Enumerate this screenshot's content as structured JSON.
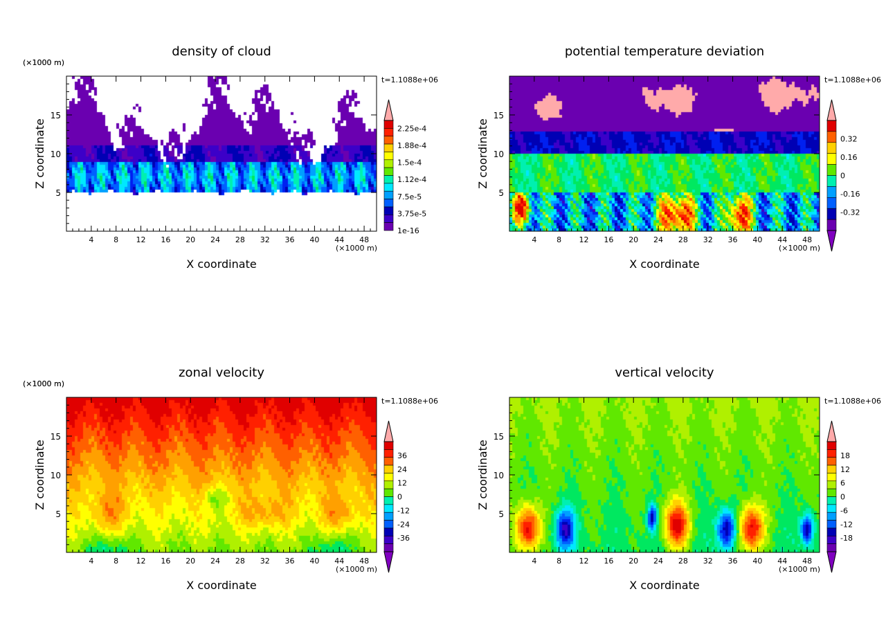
{
  "chart_data": [
    {
      "type": "heatmap",
      "title": "density of cloud",
      "xlabel": "X coordinate",
      "ylabel": "Z coordinate",
      "x_unit": "(×1000 m)",
      "y_unit": "(×1000 m)",
      "time_label": "t=1.1088e+06",
      "xlim": [
        0,
        50
      ],
      "ylim": [
        0,
        20
      ],
      "xticks": [
        4,
        8,
        12,
        16,
        20,
        24,
        28,
        32,
        36,
        40,
        44,
        48
      ],
      "yticks": [
        5,
        10,
        15
      ],
      "colorbar": {
        "labels": [
          "2.25e-4",
          "1.88e-4",
          "1.5e-4",
          "1.12e-4",
          "7.5e-5",
          "3.75e-5",
          "1e-16"
        ],
        "levels": 14,
        "extend": "max"
      }
    },
    {
      "type": "heatmap",
      "title": "potential temperature deviation",
      "xlabel": "X coordinate",
      "ylabel": "Z coordinate",
      "x_unit": "(×1000 m)",
      "y_unit": "(×1000 m)",
      "time_label": "t=1.1088e+06",
      "xlim": [
        0,
        50
      ],
      "ylim": [
        0,
        20
      ],
      "xticks": [
        4,
        8,
        12,
        16,
        20,
        24,
        28,
        32,
        36,
        40,
        44,
        48
      ],
      "yticks": [
        5,
        10,
        15
      ],
      "colorbar": {
        "labels": [
          "0.32",
          "0.16",
          "0",
          "-0.16",
          "-0.32"
        ],
        "levels": 10,
        "extend": "both"
      }
    },
    {
      "type": "heatmap",
      "title": "zonal velocity",
      "xlabel": "X coordinate",
      "ylabel": "Z coordinate",
      "x_unit": "(×1000 m)",
      "y_unit": "(×1000 m)",
      "time_label": "t=1.1088e+06",
      "xlim": [
        0,
        50
      ],
      "ylim": [
        0,
        20
      ],
      "xticks": [
        4,
        8,
        12,
        16,
        20,
        24,
        28,
        32,
        36,
        40,
        44,
        48
      ],
      "yticks": [
        5,
        10,
        15
      ],
      "colorbar": {
        "labels": [
          "36",
          "24",
          "12",
          "0",
          "-12",
          "-24",
          "-36"
        ],
        "levels": 14,
        "extend": "both"
      }
    },
    {
      "type": "heatmap",
      "title": "vertical velocity",
      "xlabel": "X coordinate",
      "ylabel": "Z coordinate",
      "x_unit": "(×1000 m)",
      "y_unit": "(×1000 m)",
      "time_label": "t=1.1088e+06",
      "xlim": [
        0,
        50
      ],
      "ylim": [
        0,
        20
      ],
      "xticks": [
        4,
        8,
        12,
        16,
        20,
        24,
        28,
        32,
        36,
        40,
        44,
        48
      ],
      "yticks": [
        5,
        10,
        15
      ],
      "colorbar": {
        "labels": [
          "18",
          "12",
          "6",
          "0",
          "-6",
          "-12",
          "-18"
        ],
        "levels": 14,
        "extend": "both"
      }
    }
  ],
  "colors": {
    "palette": [
      "#6a00b0",
      "#3c00c8",
      "#0000b4",
      "#0020f0",
      "#0060ff",
      "#00a0ff",
      "#00e8ff",
      "#00f0b0",
      "#00e860",
      "#60e800",
      "#b0f000",
      "#ffff00",
      "#ffd000",
      "#ffa000",
      "#ff6000",
      "#ff2000",
      "#e00000"
    ],
    "over": "#ffaaaa",
    "under": "#8000c0"
  }
}
